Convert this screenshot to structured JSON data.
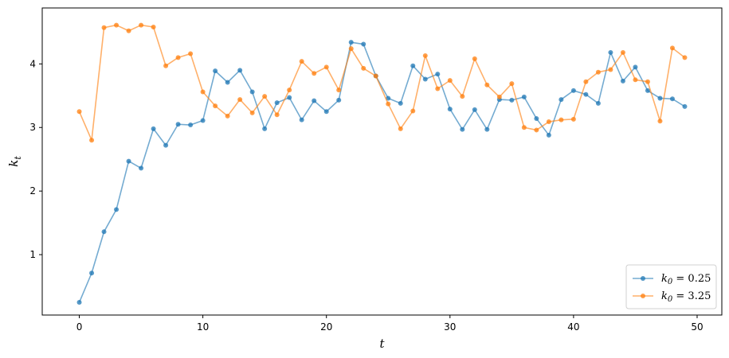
{
  "chart_data": {
    "type": "line",
    "title": "",
    "xlabel": "t",
    "ylabel_base": "k",
    "ylabel_sub": "t",
    "xlim": [
      -3.0,
      52.0
    ],
    "ylim": [
      0.05,
      4.88
    ],
    "xticks": [
      0,
      10,
      20,
      30,
      40,
      50
    ],
    "yticks": [
      1,
      2,
      3,
      4
    ],
    "grid": false,
    "legend_position": "bottom-right",
    "x": [
      0,
      1,
      2,
      3,
      4,
      5,
      6,
      7,
      8,
      9,
      10,
      11,
      12,
      13,
      14,
      15,
      16,
      17,
      18,
      19,
      20,
      21,
      22,
      23,
      24,
      25,
      26,
      27,
      28,
      29,
      30,
      31,
      32,
      33,
      34,
      35,
      36,
      37,
      38,
      39,
      40,
      41,
      42,
      43,
      44,
      45,
      46,
      47,
      48,
      49
    ],
    "series": [
      {
        "name": "k0 = 0.25",
        "legend_base": "k",
        "legend_sub": "0",
        "legend_rest": " = 0.25",
        "color": "#1f77b4",
        "values": [
          0.25,
          0.71,
          1.36,
          1.71,
          2.47,
          2.36,
          2.98,
          2.72,
          3.05,
          3.04,
          3.11,
          3.89,
          3.71,
          3.9,
          3.56,
          2.98,
          3.39,
          3.47,
          3.12,
          3.42,
          3.25,
          3.43,
          4.34,
          4.31,
          3.81,
          3.46,
          3.38,
          3.97,
          3.76,
          3.84,
          3.29,
          2.97,
          3.28,
          2.97,
          3.44,
          3.43,
          3.48,
          3.14,
          2.88,
          3.44,
          3.58,
          3.52,
          3.38,
          4.18,
          3.73,
          3.95,
          3.58,
          3.46,
          3.45,
          3.33
        ]
      },
      {
        "name": "k0 = 3.25",
        "legend_base": "k",
        "legend_sub": "0",
        "legend_rest": " = 3.25",
        "color": "#ff7f0e",
        "values": [
          3.25,
          2.8,
          4.57,
          4.61,
          4.52,
          4.61,
          4.58,
          3.97,
          4.1,
          4.16,
          3.56,
          3.34,
          3.18,
          3.44,
          3.23,
          3.49,
          3.2,
          3.59,
          4.04,
          3.85,
          3.95,
          3.59,
          4.24,
          3.93,
          3.81,
          3.37,
          2.98,
          3.26,
          4.13,
          3.61,
          3.74,
          3.49,
          4.08,
          3.67,
          3.48,
          3.69,
          3.0,
          2.96,
          3.09,
          3.12,
          3.13,
          3.72,
          3.87,
          3.91,
          4.18,
          3.75,
          3.72,
          3.1,
          4.25,
          4.1
        ]
      }
    ]
  }
}
